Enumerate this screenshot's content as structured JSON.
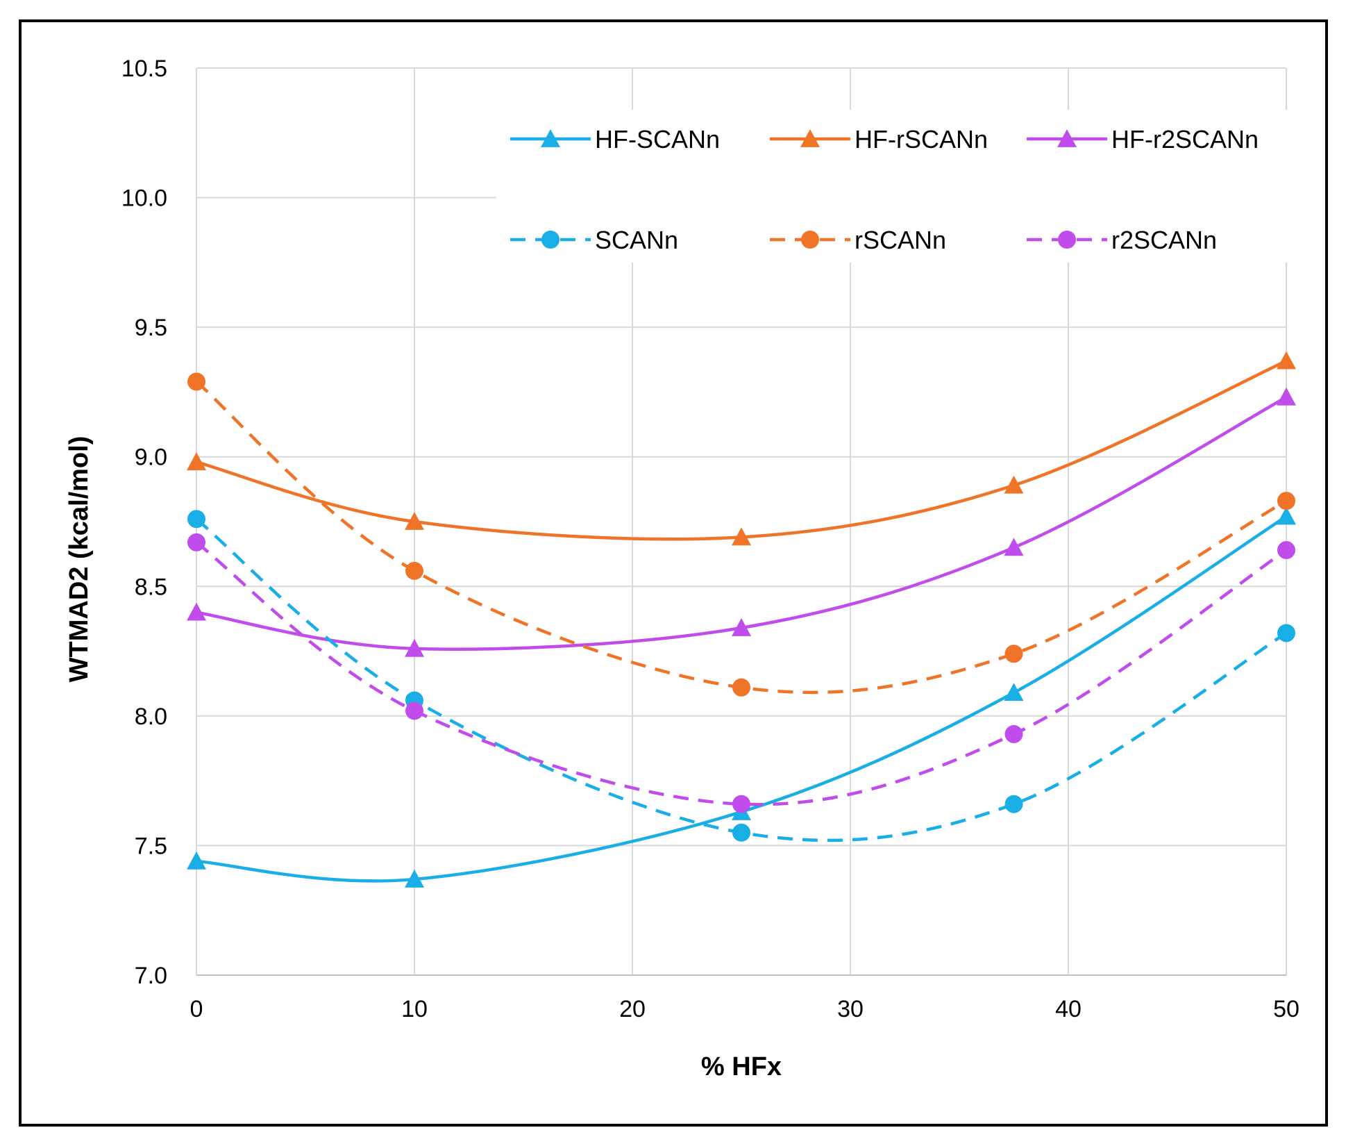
{
  "chart_data": {
    "type": "line",
    "title": "",
    "xlabel": "% HFx",
    "ylabel": "WTMAD2 (kcal/mol)",
    "xlim": [
      0,
      50
    ],
    "ylim": [
      7.0,
      10.5
    ],
    "xticks": [
      0,
      10,
      20,
      30,
      40,
      50
    ],
    "yticks": [
      7.0,
      7.5,
      8.0,
      8.5,
      9.0,
      9.5,
      10.0,
      10.5
    ],
    "x_tick_labels": [
      "0",
      "10",
      "20",
      "30",
      "40",
      "50"
    ],
    "y_tick_labels": [
      "7.0",
      "7.5",
      "8.0",
      "8.5",
      "9.0",
      "9.5",
      "10.0",
      "10.5"
    ],
    "grid": true,
    "legend_position": "top-right",
    "smooth": true,
    "series": [
      {
        "name": "HF-SCANn",
        "color": "#1AAEE6",
        "dashed": false,
        "marker": "triangle",
        "x": [
          0,
          10,
          25,
          37.5,
          50
        ],
        "y": [
          7.44,
          7.37,
          7.63,
          8.09,
          8.77
        ]
      },
      {
        "name": "HF-rSCANn",
        "color": "#F07427",
        "dashed": false,
        "marker": "triangle",
        "x": [
          0,
          10,
          25,
          37.5,
          50
        ],
        "y": [
          8.98,
          8.75,
          8.69,
          8.89,
          9.37
        ]
      },
      {
        "name": "HF-r2SCANn",
        "color": "#BF4CEB",
        "dashed": false,
        "marker": "triangle",
        "x": [
          0,
          10,
          25,
          37.5,
          50
        ],
        "y": [
          8.4,
          8.26,
          8.34,
          8.65,
          9.23
        ]
      },
      {
        "name": "SCANn",
        "color": "#1AAEE6",
        "dashed": true,
        "marker": "circle",
        "x": [
          0,
          10,
          25,
          37.5,
          50
        ],
        "y": [
          8.76,
          8.06,
          7.55,
          7.66,
          8.32
        ]
      },
      {
        "name": "rSCANn",
        "color": "#F07427",
        "dashed": true,
        "marker": "circle",
        "x": [
          0,
          10,
          25,
          37.5,
          50
        ],
        "y": [
          9.29,
          8.56,
          8.11,
          8.24,
          8.83
        ]
      },
      {
        "name": "r2SCANn",
        "color": "#BF4CEB",
        "dashed": true,
        "marker": "circle",
        "x": [
          0,
          10,
          25,
          37.5,
          50
        ],
        "y": [
          8.67,
          8.02,
          7.66,
          7.93,
          8.64
        ]
      }
    ]
  }
}
